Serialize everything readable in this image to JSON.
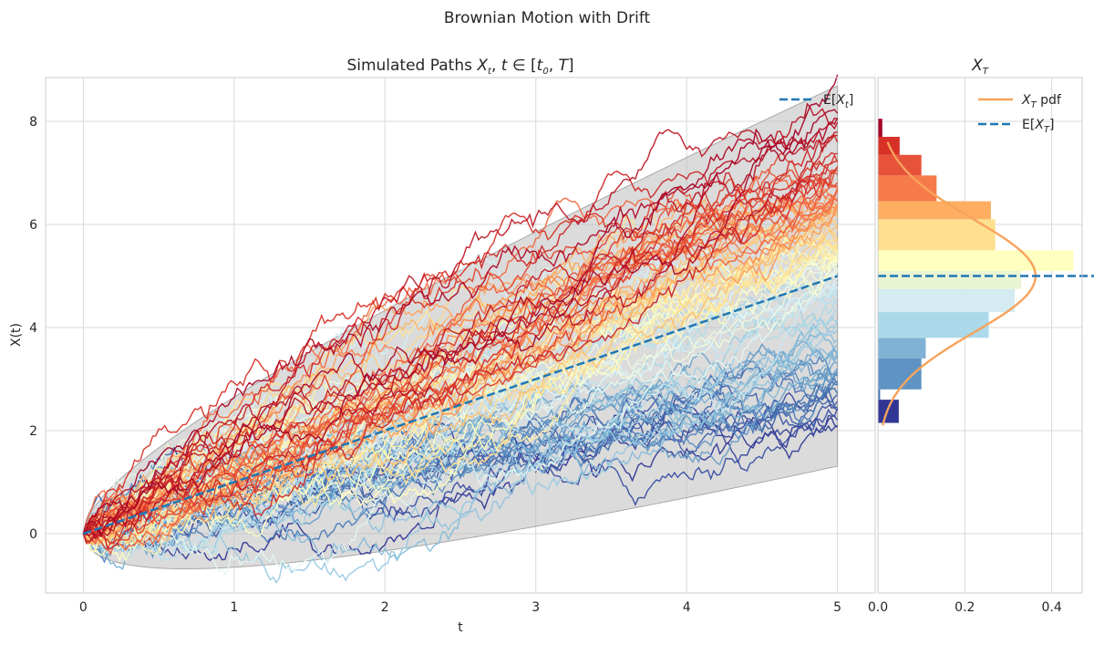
{
  "suptitle": "Brownian Motion with Drift",
  "chart_data": [
    {
      "type": "line",
      "title": "Simulated Paths X_t, t ∈ [t_0, T]",
      "title_parts": [
        "Simulated Paths ",
        "X",
        "t",
        ", ",
        "t",
        " ∈ [",
        "t",
        "0",
        ", ",
        "T",
        "]"
      ],
      "xlabel": "t",
      "ylabel": "X(t)",
      "xlim": [
        -0.25,
        5.25
      ],
      "ylim": [
        -1.15,
        8.85
      ],
      "xticks": [
        0,
        1,
        2,
        3,
        4,
        5
      ],
      "xtick_labels": [
        "0",
        "1",
        "2",
        "3",
        "4",
        "5"
      ],
      "yticks": [
        0,
        2,
        4,
        6,
        8
      ],
      "ytick_labels": [
        "0",
        "2",
        "4",
        "6",
        "8"
      ],
      "grid": true,
      "legend_position": "top-right",
      "legend": [
        {
          "label_parts": [
            "E[",
            "X",
            "t",
            "]"
          ],
          "color": "#1f77b4",
          "style": "dashed"
        }
      ],
      "drift": 1.0,
      "sigma": 0.66,
      "n_paths": 100,
      "n_steps": 250,
      "confidence_band": {
        "color": "#bdbdbd",
        "opacity": 0.55,
        "z": 2.5
      },
      "colormap": "RdYlBu_r",
      "mean_line": {
        "x": [
          0,
          5
        ],
        "y": [
          0,
          5
        ],
        "color": "#1f77b4",
        "style": "dashed"
      }
    },
    {
      "type": "bar",
      "orientation": "horizontal",
      "title": "X_T",
      "title_parts": [
        "X",
        "T"
      ],
      "xlim": [
        0,
        0.47
      ],
      "xticks": [
        0.0,
        0.2,
        0.4
      ],
      "xtick_labels": [
        "0.0",
        "0.2",
        "0.4"
      ],
      "ylim": [
        -1.15,
        8.85
      ],
      "grid": true,
      "legend_position": "top-right",
      "legend": [
        {
          "label_parts": [
            "X",
            "T",
            " pdf"
          ],
          "color": "#f7a35c",
          "style": "solid"
        },
        {
          "label_parts": [
            "E[",
            "X",
            "T",
            "]"
          ],
          "color": "#1f77b4",
          "style": "dashed"
        }
      ],
      "bin_edges": [
        2.15,
        2.6,
        2.8,
        3.4,
        3.8,
        4.3,
        4.75,
        5.1,
        5.5,
        6.1,
        6.45,
        6.95,
        7.35,
        7.7,
        8.05
      ],
      "values": [
        0.048,
        0.005,
        0.1,
        0.11,
        0.255,
        0.315,
        0.33,
        0.45,
        0.27,
        0.26,
        0.135,
        0.1,
        0.05,
        0.01
      ],
      "bar_colors": [
        "#313695",
        "#4575b4",
        "#5f93c3",
        "#7fb2d5",
        "#abd9e9",
        "#d5ebf2",
        "#e9f5d2",
        "#ffffbf",
        "#fee090",
        "#fdae61",
        "#f67b4a",
        "#e6523a",
        "#d73027",
        "#a50026"
      ],
      "pdf": {
        "mean": 5.0,
        "std": 1.1,
        "color": "#f7a35c",
        "ymin": 2.1,
        "ymax": 7.6
      },
      "mean_line": {
        "y": 5.0,
        "color": "#1f77b4",
        "style": "dashed"
      }
    }
  ]
}
